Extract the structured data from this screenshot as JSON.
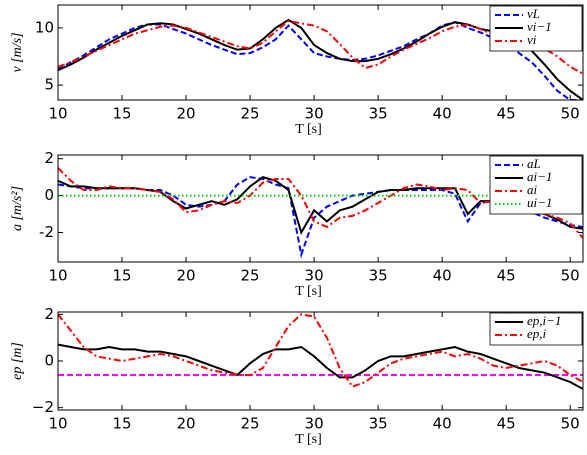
{
  "chart_data": [
    {
      "type": "line",
      "ylabel": "v [m/s]",
      "xlabel": "T [s]",
      "x": [
        10,
        11,
        12,
        13,
        14,
        15,
        16,
        17,
        18,
        19,
        20,
        21,
        22,
        23,
        24,
        25,
        26,
        27,
        28,
        29,
        30,
        31,
        32,
        33,
        34,
        35,
        36,
        37,
        38,
        39,
        40,
        41,
        42,
        43,
        44,
        45,
        46,
        47,
        48,
        49,
        50,
        51
      ],
      "xlim": [
        10,
        51
      ],
      "xticks": [
        10,
        15,
        20,
        25,
        30,
        35,
        40,
        45,
        50
      ],
      "ylim": [
        3.7,
        12
      ],
      "yticks": [
        5,
        10
      ],
      "legend": "upper right",
      "series": [
        {
          "name": "vL",
          "color": "#0000ff",
          "dash": "dashed",
          "values": [
            6.4,
            7.0,
            7.6,
            8.3,
            9.0,
            9.5,
            10.0,
            10.3,
            10.3,
            9.9,
            9.5,
            9.0,
            8.5,
            8.1,
            7.7,
            7.8,
            8.3,
            9.0,
            10.2,
            9.0,
            7.8,
            7.5,
            7.3,
            7.2,
            7.3,
            7.6,
            8.0,
            8.4,
            9.0,
            9.5,
            10.2,
            10.5,
            10.0,
            9.6,
            9.1,
            8.5,
            7.8,
            7.0,
            5.8,
            4.5,
            3.7,
            3.7
          ]
        },
        {
          "name": "vi−1",
          "color": "#000000",
          "dash": "solid",
          "values": [
            6.3,
            6.8,
            7.4,
            8.1,
            8.7,
            9.3,
            9.8,
            10.3,
            10.4,
            10.3,
            9.9,
            9.5,
            9.0,
            8.5,
            8.1,
            8.2,
            9.0,
            10.0,
            10.7,
            10.0,
            8.5,
            7.8,
            7.3,
            7.1,
            7.1,
            7.3,
            7.7,
            8.2,
            8.8,
            9.5,
            10.1,
            10.5,
            10.3,
            9.9,
            9.7,
            9.6,
            9.0,
            8.0,
            6.8,
            5.5,
            4.5,
            3.7
          ]
        },
        {
          "name": "vi",
          "color": "#ff0000",
          "dash": "dashdot",
          "values": [
            6.6,
            7.0,
            7.5,
            8.0,
            8.5,
            9.0,
            9.5,
            9.8,
            10.1,
            10.2,
            10.0,
            9.6,
            9.2,
            8.8,
            8.4,
            8.2,
            8.7,
            9.7,
            10.6,
            10.4,
            10.2,
            9.7,
            8.6,
            7.4,
            6.5,
            6.8,
            7.5,
            8.1,
            8.6,
            9.1,
            9.7,
            10.1,
            10.3,
            9.9,
            9.4,
            9.0,
            8.8,
            8.5,
            8.2,
            7.5,
            6.6,
            6.0
          ]
        }
      ]
    },
    {
      "type": "line",
      "ylabel": "a [m/s²]",
      "xlabel": "T [s]",
      "x": [
        10,
        11,
        12,
        13,
        14,
        15,
        16,
        17,
        18,
        19,
        20,
        21,
        22,
        23,
        24,
        25,
        26,
        27,
        28,
        29,
        30,
        31,
        32,
        33,
        34,
        35,
        36,
        37,
        38,
        39,
        40,
        41,
        42,
        43,
        44,
        45,
        46,
        47,
        48,
        49,
        50,
        51
      ],
      "xlim": [
        10,
        51
      ],
      "xticks": [
        10,
        15,
        20,
        25,
        30,
        35,
        40,
        45,
        50
      ],
      "ylim": [
        -3.6,
        2.2
      ],
      "yticks": [
        -2,
        0,
        2
      ],
      "legend": "upper right",
      "series": [
        {
          "name": "aL",
          "color": "#0000ff",
          "dash": "dashed",
          "values": [
            0.6,
            0.5,
            0.4,
            0.4,
            0.4,
            0.4,
            0.4,
            0.3,
            0.3,
            0.0,
            -0.5,
            -0.6,
            -0.5,
            -0.3,
            0.6,
            1.0,
            0.9,
            0.6,
            0.4,
            -3.2,
            -1.2,
            -0.6,
            -0.3,
            0.0,
            0.1,
            0.2,
            0.3,
            0.3,
            0.3,
            0.3,
            0.3,
            0.1,
            -1.4,
            -0.4,
            -0.3,
            -0.4,
            -0.6,
            -0.9,
            -1.2,
            -1.4,
            -1.6,
            -1.7
          ]
        },
        {
          "name": "ai−1",
          "color": "#000000",
          "dash": "solid",
          "values": [
            0.8,
            0.5,
            0.5,
            0.4,
            0.4,
            0.4,
            0.4,
            0.3,
            0.2,
            -0.3,
            -0.7,
            -0.5,
            -0.3,
            -0.5,
            -0.2,
            0.5,
            1.0,
            0.8,
            0.3,
            -2.0,
            -0.8,
            -1.4,
            -0.8,
            -0.6,
            -0.2,
            0.2,
            0.3,
            0.3,
            0.4,
            0.4,
            0.4,
            0.4,
            -1.0,
            -0.3,
            -0.3,
            -0.4,
            -0.6,
            -0.8,
            -1.0,
            -1.3,
            -1.7,
            -1.8
          ]
        },
        {
          "name": "ai",
          "color": "#ff0000",
          "dash": "dashdot",
          "values": [
            1.5,
            0.8,
            0.3,
            0.3,
            0.5,
            0.4,
            0.4,
            0.3,
            0.2,
            -0.2,
            -0.9,
            -0.8,
            -0.5,
            -0.3,
            -0.4,
            0.0,
            0.7,
            0.9,
            0.9,
            0.0,
            -1.4,
            -1.7,
            -1.2,
            -1.1,
            -0.8,
            -0.4,
            0.0,
            0.4,
            0.6,
            0.5,
            0.3,
            0.4,
            0.3,
            -0.4,
            -0.3,
            -0.3,
            -0.5,
            -0.7,
            -1.0,
            -1.2,
            -1.5,
            -2.3
          ]
        },
        {
          "name": "ui−1",
          "color": "#00cc00",
          "dash": "dotted",
          "values": [
            0,
            0,
            0,
            0,
            0,
            0,
            0,
            0,
            0,
            0,
            0,
            0,
            0,
            0,
            0,
            0,
            0,
            0,
            0,
            0,
            0,
            0,
            0,
            0,
            0,
            0,
            0,
            0,
            0,
            0,
            0,
            0,
            0,
            0,
            0,
            0,
            0,
            0,
            0,
            0,
            0,
            0
          ]
        }
      ]
    },
    {
      "type": "line",
      "ylabel": "ep [m]",
      "xlabel": "T [s]",
      "x": [
        10,
        11,
        12,
        13,
        14,
        15,
        16,
        17,
        18,
        19,
        20,
        21,
        22,
        23,
        24,
        25,
        26,
        27,
        28,
        29,
        30,
        31,
        32,
        33,
        34,
        35,
        36,
        37,
        38,
        39,
        40,
        41,
        42,
        43,
        44,
        45,
        46,
        47,
        48,
        49,
        50,
        51
      ],
      "xlim": [
        10,
        51
      ],
      "xticks": [
        10,
        15,
        20,
        25,
        30,
        35,
        40,
        45,
        50
      ],
      "ylim": [
        -2.1,
        2.1
      ],
      "yticks": [
        {
          "value": -2,
          "label": "−2"
        },
        0,
        2
      ],
      "legend": "upper right",
      "reference_line": {
        "value": -0.6,
        "color": "#ff00ff",
        "dash": "dashed"
      },
      "series": [
        {
          "name": "ep,i−1",
          "color": "#000000",
          "dash": "solid",
          "values": [
            0.7,
            0.6,
            0.5,
            0.5,
            0.6,
            0.5,
            0.5,
            0.4,
            0.4,
            0.3,
            0.2,
            0.0,
            -0.2,
            -0.4,
            -0.6,
            -0.1,
            0.3,
            0.5,
            0.5,
            0.6,
            0.2,
            -0.3,
            -0.7,
            -0.7,
            -0.4,
            0.0,
            0.2,
            0.2,
            0.3,
            0.4,
            0.5,
            0.6,
            0.4,
            0.3,
            0.1,
            -0.1,
            -0.3,
            -0.4,
            -0.5,
            -0.7,
            -0.9,
            -1.2
          ]
        },
        {
          "name": "ep,i",
          "color": "#ff0000",
          "dash": "dashdot",
          "values": [
            2.0,
            1.3,
            0.6,
            0.2,
            0.1,
            0.0,
            0.1,
            0.2,
            0.3,
            0.2,
            0.0,
            -0.2,
            -0.4,
            -0.5,
            -0.6,
            -0.6,
            -0.3,
            0.6,
            1.5,
            2.0,
            1.9,
            1.0,
            -0.3,
            -1.1,
            -0.9,
            -0.5,
            -0.1,
            0.1,
            0.2,
            0.3,
            0.4,
            0.2,
            0.3,
            0.1,
            -0.2,
            -0.3,
            -0.2,
            -0.1,
            0.0,
            -0.2,
            -0.6,
            -0.9
          ]
        }
      ]
    }
  ]
}
